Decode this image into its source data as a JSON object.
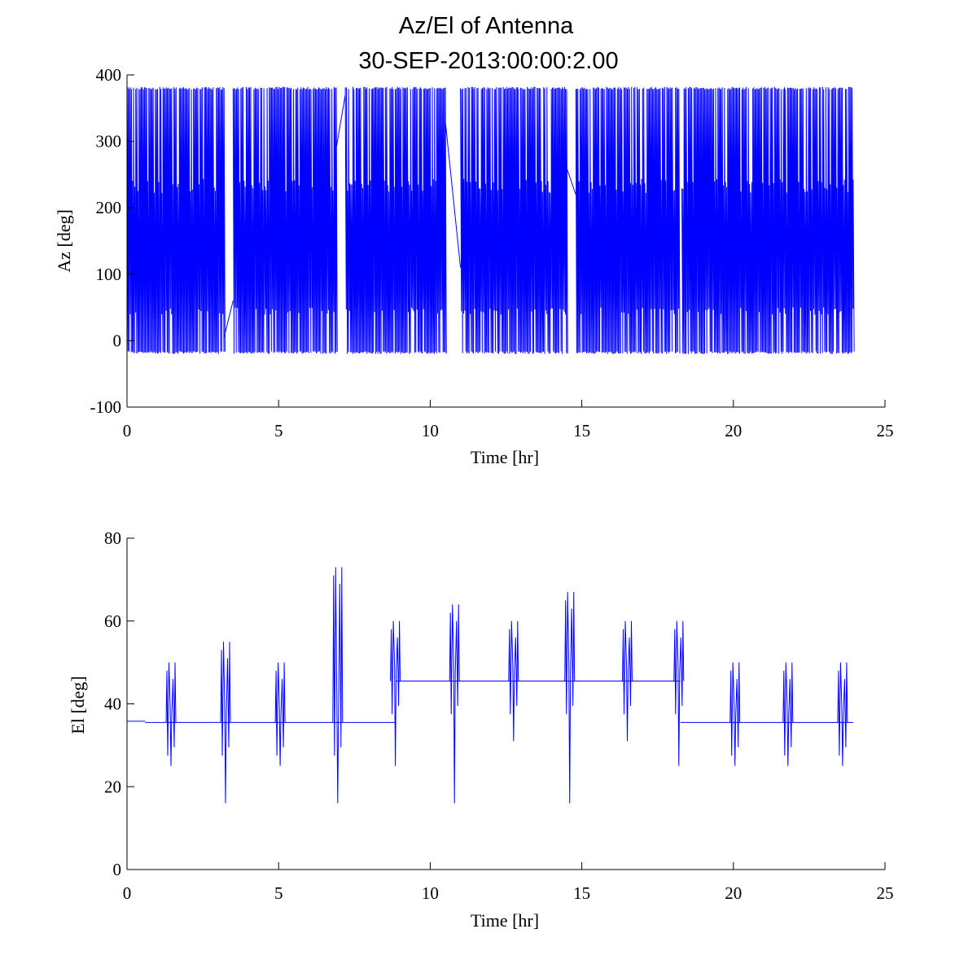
{
  "chart_data": [
    {
      "type": "line",
      "title_lines": [
        "Az/El of Antenna",
        "30-SEP-2013:00:00:2.00"
      ],
      "xlabel": "Time [hr]",
      "ylabel": "Az [deg]",
      "xlim": [
        0,
        25
      ],
      "ylim": [
        -100,
        400
      ],
      "xticks": [
        0,
        5,
        10,
        15,
        20,
        25
      ],
      "yticks": [
        -100,
        0,
        100,
        200,
        300,
        400
      ],
      "xtick_labels": [
        "0",
        "5",
        "10",
        "15",
        "20",
        "25"
      ],
      "ytick_labels": [
        "-100",
        "0",
        "100",
        "200",
        "300",
        "400"
      ],
      "grid": false,
      "series": [
        {
          "name": "Az",
          "color": "#0000ff",
          "oscillation_min": -20,
          "oscillation_max": 382,
          "active_intervals": [
            [
              0.0,
              3.2
            ],
            [
              3.5,
              6.9
            ],
            [
              7.2,
              10.5
            ],
            [
              11.0,
              14.5
            ],
            [
              14.8,
              18.2
            ],
            [
              18.3,
              23.95
            ]
          ],
          "transitions": [
            {
              "t": [
                3.2,
                3.5
              ],
              "v": [
                5,
                60
              ]
            },
            {
              "t": [
                6.9,
                7.2
              ],
              "v": [
                290,
                370
              ]
            },
            {
              "t": [
                10.5,
                11.0
              ],
              "v": [
                330,
                110
              ]
            },
            {
              "t": [
                14.5,
                14.8
              ],
              "v": [
                260,
                220
              ]
            }
          ],
          "x_range": [
            0,
            23.95
          ]
        }
      ]
    },
    {
      "type": "line",
      "xlabel": "Time [hr]",
      "ylabel": "El [deg]",
      "xlim": [
        0,
        25
      ],
      "ylim": [
        0,
        80
      ],
      "xticks": [
        0,
        5,
        10,
        15,
        20,
        25
      ],
      "yticks": [
        0,
        20,
        40,
        60,
        80
      ],
      "xtick_labels": [
        "0",
        "5",
        "10",
        "15",
        "20",
        "25"
      ],
      "ytick_labels": [
        "0",
        "20",
        "40",
        "60",
        "80"
      ],
      "grid": false,
      "series": [
        {
          "name": "El",
          "color": "#0000ff",
          "baseline_segments": [
            {
              "x": [
                0.0,
                0.6
              ],
              "y": 35.8
            },
            {
              "x": [
                0.6,
                8.85
              ],
              "y": 35.5
            },
            {
              "x": [
                8.85,
                18.25
              ],
              "y": 45.5
            },
            {
              "x": [
                18.25,
                23.95
              ],
              "y": 35.5
            }
          ],
          "events": [
            {
              "t": 1.45,
              "high": 50,
              "low": 25
            },
            {
              "t": 3.25,
              "high": 55,
              "low": 16
            },
            {
              "t": 5.05,
              "high": 50,
              "low": 25
            },
            {
              "t": 6.95,
              "high": 73,
              "low": 16
            },
            {
              "t": 8.85,
              "high": 60,
              "low": 25
            },
            {
              "t": 10.8,
              "high": 64,
              "low": 16
            },
            {
              "t": 12.75,
              "high": 60,
              "low": 31
            },
            {
              "t": 14.6,
              "high": 67,
              "low": 16
            },
            {
              "t": 16.5,
              "high": 60,
              "low": 31
            },
            {
              "t": 18.2,
              "high": 60,
              "low": 25
            },
            {
              "t": 20.05,
              "high": 50,
              "low": 25
            },
            {
              "t": 21.8,
              "high": 50,
              "low": 25
            },
            {
              "t": 23.6,
              "high": 50,
              "low": 25
            }
          ],
          "x_range": [
            0,
            23.95
          ]
        }
      ]
    }
  ]
}
